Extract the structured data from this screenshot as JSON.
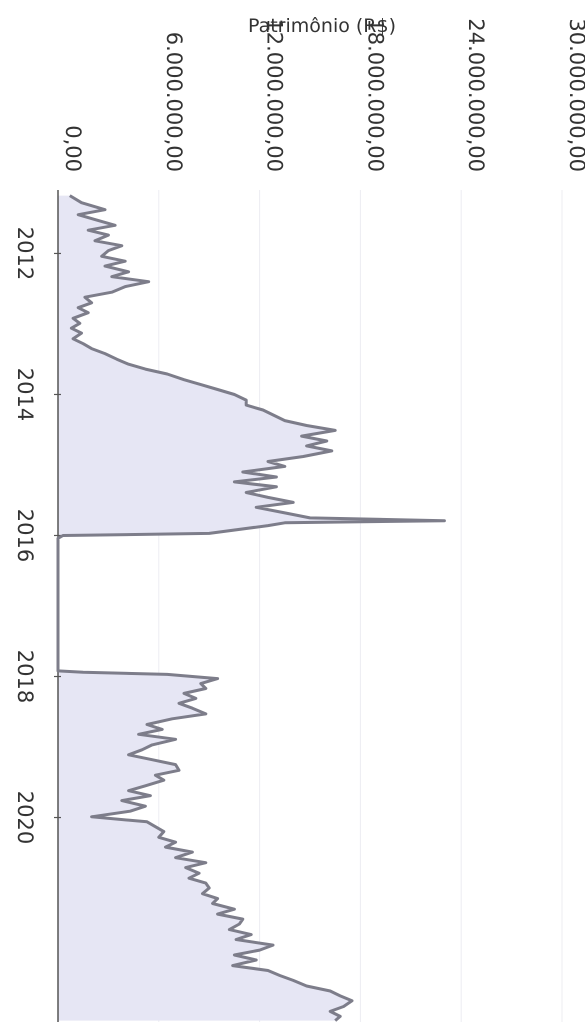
{
  "chart_data": {
    "type": "area",
    "orientation": "rotated-90",
    "title": "",
    "ylabel": "Patrimônio (R$)",
    "xlabel": "",
    "ylim": [
      0,
      30000000
    ],
    "yticks": [
      0,
      6000000,
      12000000,
      18000000,
      24000000,
      30000000
    ],
    "ytick_labels": [
      "0,00",
      "6.000.000,00",
      "12.000.000,00",
      "18.000.000,00",
      "24.000.000,00",
      "30.000.000,00"
    ],
    "xlim": [
      2011.1,
      2022.9
    ],
    "xticks": [
      2012,
      2014,
      2016,
      2018,
      2020
    ],
    "xtick_labels": [
      "2012",
      "2014",
      "2016",
      "2018",
      "2020"
    ],
    "grid": true,
    "colors": {
      "line": "#7d7d8a",
      "fill": "#e6e6f4",
      "grid": "#ececf2",
      "axis": "#555555"
    },
    "series": [
      {
        "x": [
          2011.18,
          2011.28,
          2011.38,
          2011.45,
          2011.52,
          2011.6,
          2011.67,
          2011.74,
          2011.82,
          2011.89,
          2011.96,
          2012.04,
          2012.11,
          2012.18,
          2012.26,
          2012.33,
          2012.4,
          2012.47,
          2012.55,
          2012.62,
          2012.7,
          2012.77,
          2012.84,
          2012.92,
          2012.99,
          2013.06,
          2013.13,
          2013.21,
          2013.28,
          2013.35,
          2013.42,
          2013.5,
          2013.57,
          2013.64,
          2013.71,
          2013.79,
          2013.86,
          2013.93,
          2014.0,
          2014.08,
          2014.15,
          2014.22,
          2014.29,
          2014.37,
          2014.44,
          2014.51,
          2014.59,
          2014.66,
          2014.73,
          2014.8,
          2014.88,
          2014.95,
          2015.02,
          2015.1,
          2015.17,
          2015.24,
          2015.31,
          2015.39,
          2015.46,
          2015.53,
          2015.6,
          2015.68,
          2015.75,
          2015.79,
          2015.82,
          2015.86,
          2015.97,
          2016.0,
          2016.04,
          2017.92,
          2017.94,
          2017.97,
          2018.03,
          2018.1,
          2018.17,
          2018.24,
          2018.31,
          2018.38,
          2018.45,
          2018.53,
          2018.6,
          2018.68,
          2018.75,
          2018.82,
          2018.89,
          2018.97,
          2019.04,
          2019.11,
          2019.18,
          2019.25,
          2019.33,
          2019.4,
          2019.47,
          2019.55,
          2019.62,
          2019.69,
          2019.76,
          2019.84,
          2019.91,
          2019.99,
          2020.06,
          2020.13,
          2020.2,
          2020.28,
          2020.35,
          2020.42,
          2020.49,
          2020.57,
          2020.64,
          2020.71,
          2020.79,
          2020.86,
          2020.93,
          2021.0,
          2021.08,
          2021.15,
          2021.22,
          2021.3,
          2021.37,
          2021.44,
          2021.51,
          2021.59,
          2021.66,
          2021.73,
          2021.81,
          2021.88,
          2021.95,
          2022.02,
          2022.1,
          2022.17,
          2022.24,
          2022.31,
          2022.39,
          2022.46,
          2022.53,
          2022.6,
          2022.68,
          2022.75,
          2022.82,
          2022.88
        ],
        "y": [
          700000,
          1400000,
          2800000,
          1200000,
          2200000,
          3400000,
          1800000,
          3000000,
          2200000,
          3800000,
          3000000,
          2600000,
          4000000,
          2800000,
          4200000,
          3200000,
          5400000,
          4000000,
          3200000,
          1600000,
          2000000,
          1200000,
          1800000,
          900000,
          1300000,
          800000,
          1400000,
          900000,
          1500000,
          2000000,
          2800000,
          3500000,
          4200000,
          5200000,
          6500000,
          7500000,
          8500000,
          9500000,
          10500000,
          11200000,
          11200000,
          12200000,
          12800000,
          13500000,
          14800000,
          16500000,
          14500000,
          16000000,
          14800000,
          16300000,
          14600000,
          12500000,
          13500000,
          11000000,
          13000000,
          10500000,
          13000000,
          11200000,
          12500000,
          14000000,
          11800000,
          13500000,
          15000000,
          23000000,
          13500000,
          12500000,
          9000000,
          300000,
          0,
          0,
          1500000,
          6500000,
          9500000,
          8500000,
          8800000,
          7500000,
          8200000,
          7200000,
          8000000,
          8800000,
          6800000,
          5300000,
          6200000,
          4800000,
          7000000,
          5600000,
          5000000,
          4200000,
          5600000,
          7000000,
          7200000,
          5800000,
          6300000,
          5200000,
          4200000,
          5500000,
          3800000,
          5200000,
          4300000,
          2000000,
          5300000,
          5800000,
          6300000,
          6000000,
          7000000,
          6400000,
          8000000,
          7000000,
          8800000,
          7600000,
          8400000,
          7800000,
          8800000,
          9000000,
          8600000,
          9500000,
          9200000,
          10500000,
          9500000,
          11000000,
          10800000,
          10200000,
          11500000,
          10600000,
          12800000,
          12000000,
          10500000,
          11800000,
          10400000,
          12500000,
          13200000,
          14000000,
          14800000,
          16200000,
          16800000,
          17500000,
          17000000,
          16200000,
          16800000,
          16500000
        ]
      }
    ]
  }
}
